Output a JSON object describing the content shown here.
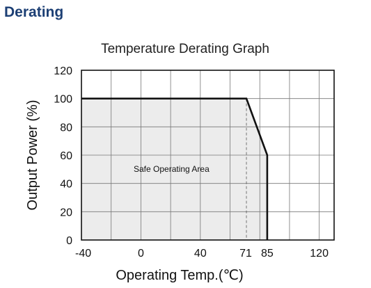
{
  "page": {
    "heading": "Derating"
  },
  "chart_data": {
    "type": "line",
    "title": "Temperature Derating Graph",
    "xlabel": "Operating Temp.(℃)",
    "ylabel": "Output Power (%)",
    "xlim": [
      -40,
      130
    ],
    "ylim": [
      0,
      120
    ],
    "x_ticks": [
      -40,
      0,
      40,
      71,
      85,
      120
    ],
    "x_tick_labels": [
      "-40",
      "0",
      "40",
      "71",
      "85",
      "120"
    ],
    "y_ticks": [
      0,
      20,
      40,
      60,
      80,
      100,
      120
    ],
    "y_tick_labels": [
      "0",
      "20",
      "40",
      "60",
      "80",
      "100",
      "120"
    ],
    "grid": true,
    "series": [
      {
        "x": [
          -40,
          71,
          85,
          85
        ],
        "y": [
          100,
          100,
          60,
          0
        ]
      }
    ],
    "annotations": [
      {
        "text": "Safe Operating Area",
        "x": 20,
        "y": 48
      }
    ],
    "colors": {
      "line": "#111111",
      "area": "#ececec",
      "grid": "#777777",
      "heading": "#1c3f74"
    }
  }
}
